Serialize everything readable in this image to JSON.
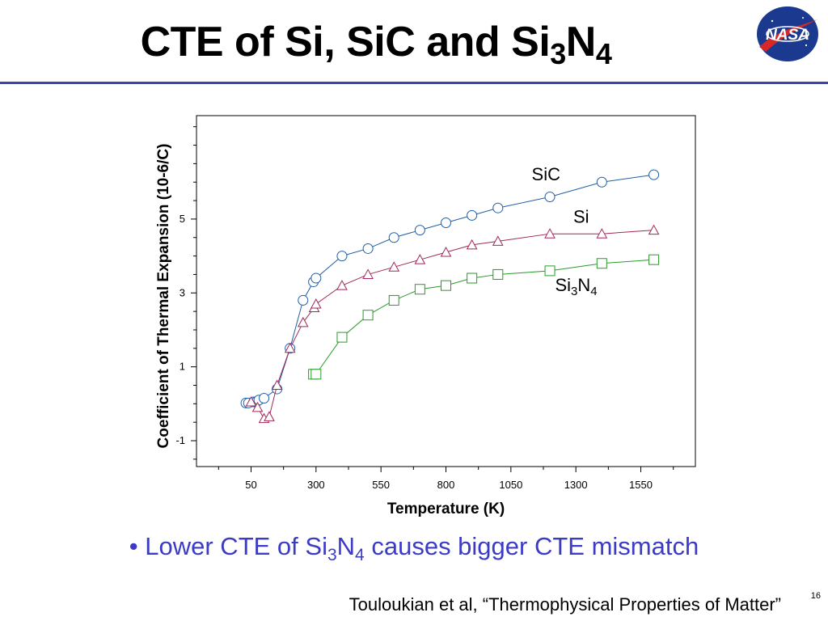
{
  "slide": {
    "title": {
      "text": "CTE of Si, SiC and Si",
      "sub1": "3",
      "mid": "N",
      "sub2": "4"
    },
    "logo_text": "NASA",
    "bullet": {
      "dot": "•",
      "pre": "Lower CTE of Si",
      "sub1": "3",
      "mid": "N",
      "sub2": "4",
      "post": " causes bigger CTE mismatch"
    },
    "source": "Touloukian et al, “Thermophysical Properties of Matter”",
    "page_number": "16"
  },
  "colors": {
    "rule": "#3b44b0",
    "bullet": "#3b3bc6",
    "sic": "#1f5fa8",
    "si": "#a0285a",
    "si3n4": "#2a9a2a"
  },
  "chart_data": {
    "type": "line",
    "xlabel": "Temperature (K)",
    "ylabel": "Coefficient of Thermal Expansion (10-6/C)",
    "xlim": [
      -160,
      1760
    ],
    "ylim": [
      -1.7,
      7.8
    ],
    "xticks": [
      50,
      300,
      550,
      800,
      1050,
      1300,
      1550
    ],
    "yticks": [
      -1,
      1,
      3,
      5
    ],
    "grid": false,
    "legend": "inline labels",
    "series": [
      {
        "name": "SiC",
        "label_sub": "",
        "label_x": 1130,
        "label_y": 6.05,
        "color": "#1f5fa8",
        "marker": "circle",
        "x": [
          30,
          40,
          60,
          70,
          80,
          100,
          150,
          200,
          250,
          290,
          300,
          400,
          500,
          600,
          700,
          800,
          900,
          1000,
          1200,
          1400,
          1600
        ],
        "y": [
          0.02,
          0.02,
          0.05,
          0.05,
          0.1,
          0.15,
          0.4,
          1.5,
          2.8,
          3.3,
          3.4,
          4.0,
          4.2,
          4.5,
          4.7,
          4.9,
          5.1,
          5.3,
          5.6,
          6.0,
          6.2
        ]
      },
      {
        "name": "Si",
        "label_sub": "",
        "label_x": 1290,
        "label_y": 4.9,
        "color": "#a0285a",
        "marker": "triangle",
        "x": [
          50,
          75,
          100,
          120,
          150,
          200,
          250,
          293,
          300,
          400,
          500,
          600,
          700,
          800,
          900,
          1000,
          1200,
          1400,
          1600
        ],
        "y": [
          0.05,
          -0.1,
          -0.4,
          -0.35,
          0.5,
          1.5,
          2.2,
          2.6,
          2.7,
          3.2,
          3.5,
          3.7,
          3.9,
          4.1,
          4.3,
          4.4,
          4.6,
          4.6,
          4.7
        ]
      },
      {
        "name": "Si",
        "label_sub": "3",
        "label_suffix": "N",
        "label_sub2": "4",
        "label_x": 1220,
        "label_y": 3.05,
        "color": "#2a9a2a",
        "marker": "square",
        "x": [
          290,
          300,
          400,
          500,
          600,
          700,
          800,
          900,
          1000,
          1200,
          1400,
          1600
        ],
        "y": [
          0.8,
          0.8,
          1.8,
          2.4,
          2.8,
          3.1,
          3.2,
          3.4,
          3.5,
          3.6,
          3.8,
          3.9
        ]
      }
    ]
  }
}
